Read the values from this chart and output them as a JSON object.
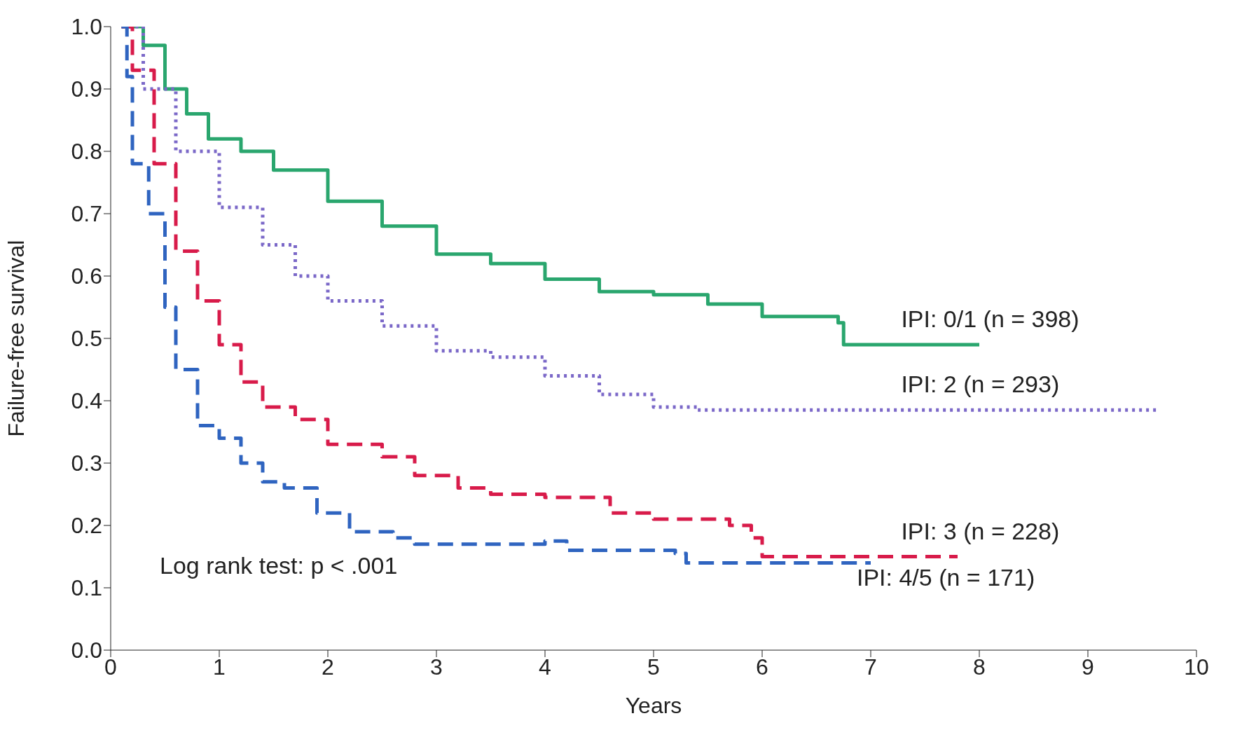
{
  "chart_data": {
    "type": "step",
    "xlabel": "Years",
    "ylabel": "Failure-free survival",
    "xlim": [
      0,
      10
    ],
    "xticks": [
      0,
      1,
      2,
      3,
      4,
      5,
      6,
      7,
      8,
      9,
      10
    ],
    "ylim": [
      0,
      1
    ],
    "yticks": [
      {
        "value": 0,
        "label": "0.0"
      },
      {
        "value": 0.1,
        "label": "0.1"
      },
      {
        "value": 0.2,
        "label": "0.2"
      },
      {
        "value": 0.3,
        "label": "0.3"
      },
      {
        "value": 0.4,
        "label": "0.4"
      },
      {
        "value": 0.5,
        "label": "0.5"
      },
      {
        "value": 0.6,
        "label": "0.6"
      },
      {
        "value": 0.7,
        "label": "0.7"
      },
      {
        "value": 0.8,
        "label": "0.8"
      },
      {
        "value": 0.9,
        "label": "0.9"
      },
      {
        "value": 1,
        "label": "1.0"
      }
    ],
    "grid": false,
    "legend": false,
    "annotations": [
      "Log rank test: p < .001"
    ],
    "series": [
      {
        "name": "IPI: 0/1 (n = 398)",
        "color": "#2aa66e",
        "line_style": "solid",
        "x": [
          0.1,
          0.3,
          0.5,
          0.7,
          0.9,
          1.2,
          1.5,
          2.0,
          2.5,
          3.0,
          3.5,
          4.0,
          4.5,
          5.0,
          5.5,
          6.0,
          6.7,
          6.75,
          8.0
        ],
        "values": [
          1.0,
          0.97,
          0.9,
          0.86,
          0.82,
          0.8,
          0.77,
          0.72,
          0.68,
          0.635,
          0.62,
          0.595,
          0.575,
          0.57,
          0.555,
          0.535,
          0.525,
          0.49,
          0.49
        ]
      },
      {
        "name": "IPI: 2 (n = 293)",
        "color": "#7b68c8",
        "line_style": "dotted",
        "x": [
          0.1,
          0.3,
          0.6,
          1.0,
          1.4,
          1.7,
          2.0,
          2.5,
          3.0,
          3.5,
          4.0,
          4.5,
          5.0,
          5.4,
          9.65
        ],
        "values": [
          1.0,
          0.9,
          0.8,
          0.71,
          0.65,
          0.6,
          0.56,
          0.52,
          0.48,
          0.47,
          0.44,
          0.41,
          0.39,
          0.385,
          0.385
        ]
      },
      {
        "name": "IPI: 3 (n = 228)",
        "color": "#d81b4a",
        "line_style": "dashed",
        "x": [
          0.1,
          0.2,
          0.4,
          0.6,
          0.8,
          1.0,
          1.2,
          1.4,
          1.7,
          2.0,
          2.5,
          2.8,
          3.2,
          3.5,
          4.0,
          4.6,
          5.0,
          5.7,
          5.9,
          6.0,
          7.8
        ],
        "values": [
          1.0,
          0.93,
          0.78,
          0.64,
          0.56,
          0.49,
          0.43,
          0.39,
          0.37,
          0.33,
          0.31,
          0.28,
          0.26,
          0.25,
          0.245,
          0.22,
          0.21,
          0.2,
          0.18,
          0.15,
          0.15
        ]
      },
      {
        "name": "IPI: 4/5 (n = 171)",
        "color": "#2f64c0",
        "line_style": "dashed",
        "x": [
          0.1,
          0.15,
          0.2,
          0.35,
          0.5,
          0.6,
          0.8,
          1.0,
          1.2,
          1.4,
          1.6,
          1.9,
          2.2,
          2.6,
          2.8,
          4.0,
          4.2,
          5.2,
          5.3,
          7.0
        ],
        "values": [
          1.0,
          0.92,
          0.78,
          0.7,
          0.55,
          0.45,
          0.36,
          0.34,
          0.3,
          0.27,
          0.26,
          0.22,
          0.19,
          0.18,
          0.17,
          0.175,
          0.16,
          0.155,
          0.14,
          0.14
        ]
      }
    ]
  }
}
